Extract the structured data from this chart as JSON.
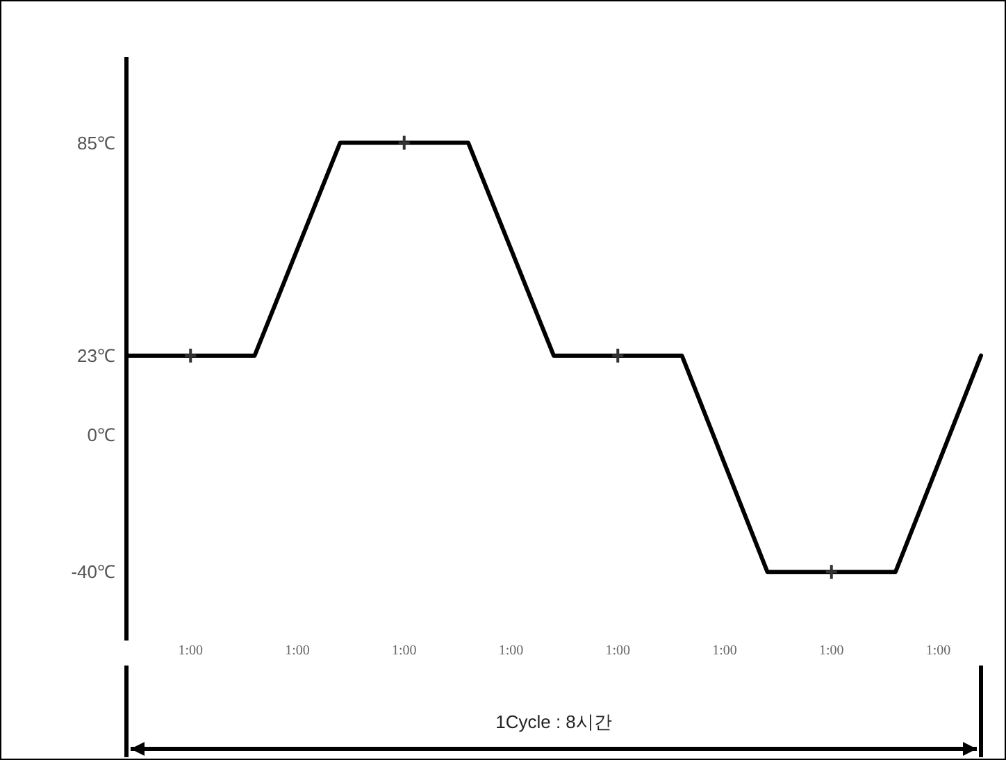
{
  "chart_data": {
    "type": "line",
    "tick_labels": "y",
    "ylim": [
      -60,
      110
    ],
    "categories": [
      null,
      null,
      null,
      null,
      null,
      null,
      null,
      null,
      null,
      null,
      null,
      null,
      null,
      null,
      null,
      null,
      null,
      null,
      null,
      null,
      null,
      null,
      null,
      null,
      null,
      null,
      null,
      null,
      null,
      null,
      null,
      null,
      null,
      null,
      null,
      null,
      null,
      null,
      null,
      null,
      null
    ],
    "yticks": [
      {
        "value": 85,
        "label": "85℃"
      },
      {
        "value": 23,
        "label": "23℃"
      },
      {
        "value": 0,
        "label": "0℃"
      },
      {
        "value": -40,
        "label": "-40℃"
      }
    ],
    "line_style": "solid",
    "series": [
      {
        "color": "#000000",
        "values": [
          23,
          23,
          23,
          23,
          23,
          23,
          23,
          38.5,
          54,
          69.5,
          85,
          85,
          85,
          85,
          85,
          85,
          85,
          69.5,
          54,
          38.5,
          23,
          23,
          23,
          23,
          23,
          23,
          23,
          7.25,
          -8.5,
          -24.25,
          -40,
          -40,
          -40,
          -40,
          -40,
          -40,
          -40,
          -24.25,
          -8.5,
          7.25,
          23
        ]
      }
    ],
    "annotations": [
      "1:00",
      "1:00",
      "1:00",
      "1:00",
      "1:00",
      "1:00",
      "1:00",
      "1:00",
      "1Cycle : 8시간"
    ]
  }
}
